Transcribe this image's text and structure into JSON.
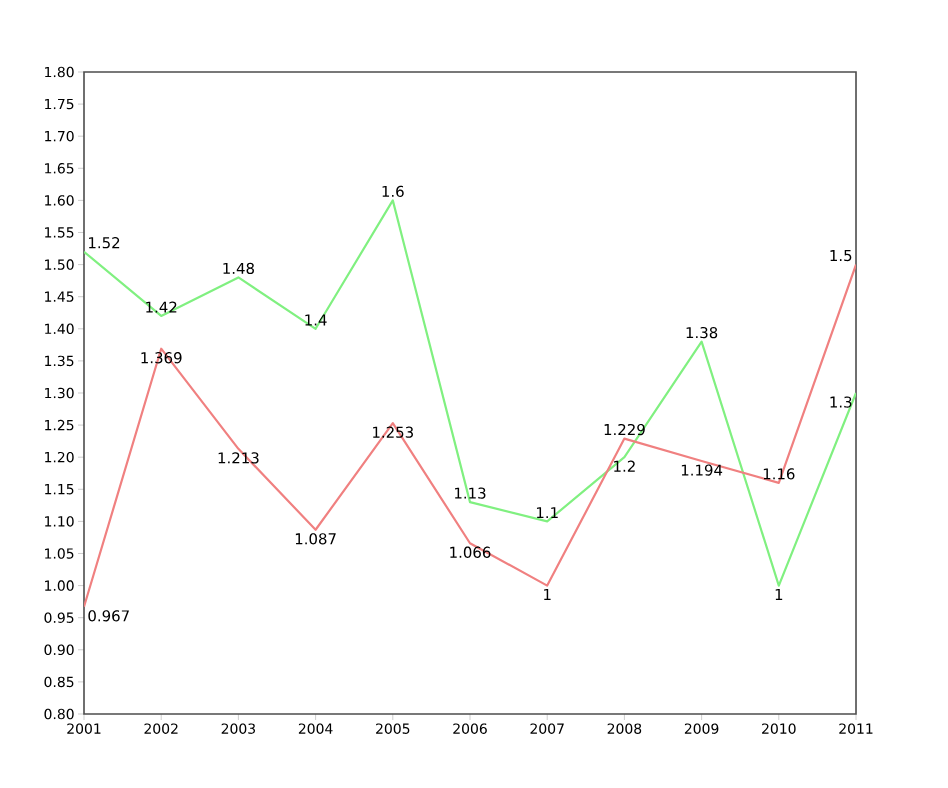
{
  "chart_data": {
    "type": "line",
    "x": [
      2001,
      2002,
      2003,
      2004,
      2005,
      2006,
      2007,
      2008,
      2009,
      2010,
      2011
    ],
    "series": [
      {
        "color": "#80f080",
        "values": [
          1.52,
          1.42,
          1.48,
          1.4,
          1.6,
          1.13,
          1.1,
          1.2,
          1.38,
          1,
          1.3
        ]
      },
      {
        "color": "#f08080",
        "values": [
          0.967,
          1.369,
          1.213,
          1.087,
          1.253,
          1.066,
          1,
          1.229,
          1.194,
          1.16,
          1.5
        ]
      }
    ],
    "xlim": [
      2001,
      2011
    ],
    "xticks": [
      2001,
      2002,
      2003,
      2004,
      2005,
      2006,
      2007,
      2008,
      2009,
      2010,
      2011
    ],
    "ylim": [
      0.8,
      1.8
    ],
    "yticks": [
      {
        "value": 0.8,
        "label": "0.80"
      },
      {
        "value": 0.85,
        "label": "0.85"
      },
      {
        "value": 0.9,
        "label": "0.90"
      },
      {
        "value": 0.95,
        "label": "0.95"
      },
      {
        "value": 1.0,
        "label": "1.00"
      },
      {
        "value": 1.05,
        "label": "1.05"
      },
      {
        "value": 1.1,
        "label": "1.10"
      },
      {
        "value": 1.15,
        "label": "1.15"
      },
      {
        "value": 1.2,
        "label": "1.20"
      },
      {
        "value": 1.25,
        "label": "1.25"
      },
      {
        "value": 1.3,
        "label": "1.30"
      },
      {
        "value": 1.35,
        "label": "1.35"
      },
      {
        "value": 1.4,
        "label": "1.40"
      },
      {
        "value": 1.45,
        "label": "1.45"
      },
      {
        "value": 1.5,
        "label": "1.50"
      },
      {
        "value": 1.55,
        "label": "1.55"
      },
      {
        "value": 1.6,
        "label": "1.60"
      },
      {
        "value": 1.65,
        "label": "1.65"
      },
      {
        "value": 1.7,
        "label": "1.70"
      },
      {
        "value": 1.75,
        "label": "1.75"
      },
      {
        "value": 1.8,
        "label": "1.80"
      }
    ],
    "data_labels": true,
    "grid": false,
    "marker": "none",
    "line_style": "solid"
  }
}
